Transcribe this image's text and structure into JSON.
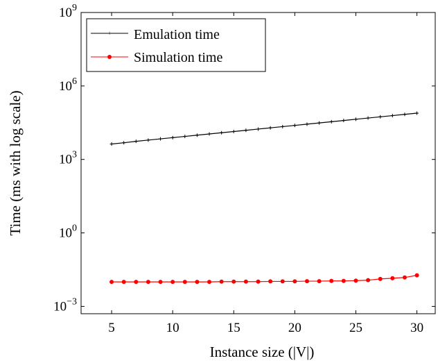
{
  "chart_data": {
    "type": "line",
    "xlabel": "Instance size (|V|)",
    "ylabel": "Time (ms with log scale)",
    "xlim": [
      2.5,
      31.5
    ],
    "ylim": [
      -3.3,
      9
    ],
    "y_scale": "log",
    "grid": false,
    "legend_position": "top-left",
    "x_ticks": [
      5,
      10,
      15,
      20,
      25,
      30
    ],
    "y_ticks": [
      {
        "value": -3,
        "base": "10",
        "exp": "−3"
      },
      {
        "value": 0,
        "base": "10",
        "exp": "0"
      },
      {
        "value": 3,
        "base": "10",
        "exp": "3"
      },
      {
        "value": 6,
        "base": "10",
        "exp": "6"
      },
      {
        "value": 9,
        "base": "10",
        "exp": "9"
      }
    ],
    "x": [
      5,
      6,
      7,
      8,
      9,
      10,
      11,
      12,
      13,
      14,
      15,
      16,
      17,
      18,
      19,
      20,
      21,
      22,
      23,
      24,
      25,
      26,
      27,
      28,
      29,
      30
    ],
    "series": [
      {
        "name": "Emulation time",
        "color": "#000000",
        "marker": "plus",
        "log10_values": [
          3.63,
          3.68,
          3.74,
          3.79,
          3.84,
          3.89,
          3.94,
          3.99,
          4.04,
          4.09,
          4.14,
          4.19,
          4.24,
          4.29,
          4.34,
          4.39,
          4.44,
          4.49,
          4.54,
          4.59,
          4.64,
          4.69,
          4.74,
          4.79,
          4.84,
          4.89
        ]
      },
      {
        "name": "Simulation time",
        "color": "#ff0000",
        "marker": "circle",
        "log10_values": [
          -2.0,
          -2.0,
          -2.0,
          -2.0,
          -2.0,
          -2.0,
          -2.0,
          -2.0,
          -2.0,
          -1.99,
          -1.99,
          -1.99,
          -1.99,
          -1.98,
          -1.98,
          -1.98,
          -1.97,
          -1.97,
          -1.96,
          -1.96,
          -1.95,
          -1.93,
          -1.88,
          -1.85,
          -1.82,
          -1.73
        ]
      }
    ]
  }
}
